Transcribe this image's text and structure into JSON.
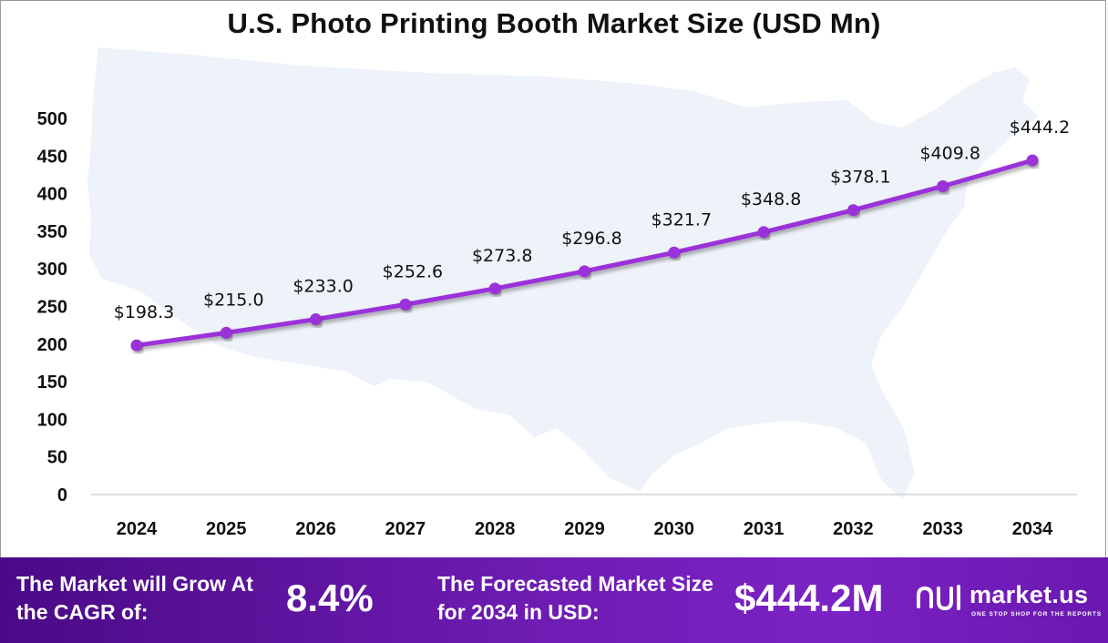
{
  "chart_data": {
    "type": "line",
    "title": "U.S. Photo Printing Booth Market Size (USD Mn)",
    "categories": [
      "2024",
      "2025",
      "2026",
      "2027",
      "2028",
      "2029",
      "2030",
      "2031",
      "2032",
      "2033",
      "2034"
    ],
    "values": [
      198.3,
      215.0,
      233.0,
      252.6,
      273.8,
      296.8,
      321.7,
      348.8,
      378.1,
      409.8,
      444.2
    ],
    "data_labels": [
      "$198.3",
      "$215.0",
      "$233.0",
      "$252.6",
      "$273.8",
      "$296.8",
      "$321.7",
      "$348.8",
      "$378.1",
      "$409.8",
      "$444.2"
    ],
    "yticks": [
      "0",
      "50",
      "100",
      "150",
      "200",
      "250",
      "300",
      "350",
      "400",
      "450",
      "500"
    ],
    "ylim": [
      0,
      500
    ],
    "xlabel": "",
    "ylabel": "",
    "grid": false,
    "line_color": "#9b30d9",
    "background_map": "United States silhouette"
  },
  "footer": {
    "cagr_label": "The Market will Grow At the CAGR of:",
    "cagr_value": "8.4%",
    "forecast_label": "The Forecasted Market Size for 2034 in USD:",
    "forecast_value": "$444.2M",
    "brand_name": "market.us",
    "brand_tagline": "ONE STOP SHOP FOR THE REPORTS",
    "brand_icon": "market-us-logo-icon"
  }
}
